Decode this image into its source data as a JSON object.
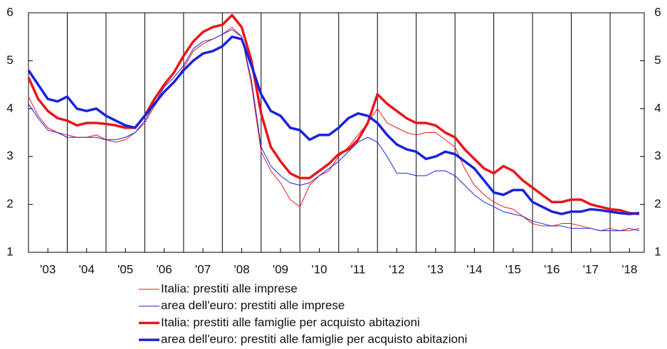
{
  "chart_data": {
    "type": "line",
    "x": [
      2003,
      2003.25,
      2003.5,
      2003.75,
      2004,
      2004.25,
      2004.5,
      2004.75,
      2005,
      2005.25,
      2005.5,
      2005.75,
      2006,
      2006.25,
      2006.5,
      2006.75,
      2007,
      2007.25,
      2007.5,
      2007.75,
      2008,
      2008.25,
      2008.5,
      2008.75,
      2009,
      2009.25,
      2009.5,
      2009.75,
      2010,
      2010.25,
      2010.5,
      2010.75,
      2011,
      2011.25,
      2011.5,
      2011.75,
      2012,
      2012.25,
      2012.5,
      2012.75,
      2013,
      2013.25,
      2013.5,
      2013.75,
      2014,
      2014.25,
      2014.5,
      2014.75,
      2015,
      2015.25,
      2015.5,
      2015.75,
      2016,
      2016.25,
      2016.5,
      2016.75,
      2017,
      2017.25,
      2017.5,
      2017.75,
      2018,
      2018.25,
      2018.5,
      2018.75
    ],
    "xlim": [
      2003,
      2018.88
    ],
    "xticks": [
      {
        "value": 2003.5,
        "label": "'03"
      },
      {
        "value": 2004.5,
        "label": "'04"
      },
      {
        "value": 2005.5,
        "label": "'05"
      },
      {
        "value": 2006.5,
        "label": "'06"
      },
      {
        "value": 2007.5,
        "label": "'07"
      },
      {
        "value": 2008.5,
        "label": "'08"
      },
      {
        "value": 2009.5,
        "label": "'09"
      },
      {
        "value": 2010.5,
        "label": "'10"
      },
      {
        "value": 2011.5,
        "label": "'11"
      },
      {
        "value": 2012.5,
        "label": "'12"
      },
      {
        "value": 2013.5,
        "label": "'13"
      },
      {
        "value": 2014.5,
        "label": "'14"
      },
      {
        "value": 2015.5,
        "label": "'15"
      },
      {
        "value": 2016.5,
        "label": "'16"
      },
      {
        "value": 2017.5,
        "label": "'17"
      },
      {
        "value": 2018.5,
        "label": "'18"
      }
    ],
    "ylim": [
      1,
      6
    ],
    "yticks": [
      1,
      2,
      3,
      4,
      5,
      6
    ],
    "y2lim": [
      1,
      6
    ],
    "y2ticks": [
      1,
      2,
      3,
      4,
      5,
      6
    ],
    "series": [
      {
        "name": "Italia: prestiti alle imprese",
        "color": "#e8161b",
        "line_width": 1,
        "values": [
          4.25,
          3.85,
          3.6,
          3.5,
          3.45,
          3.4,
          3.4,
          3.45,
          3.35,
          3.3,
          3.35,
          3.5,
          3.7,
          4.05,
          4.35,
          4.55,
          4.85,
          5.2,
          5.35,
          5.45,
          5.55,
          5.7,
          5.5,
          4.5,
          3.1,
          2.7,
          2.45,
          2.1,
          1.95,
          2.4,
          2.6,
          2.7,
          3.0,
          3.2,
          3.45,
          3.7,
          4.0,
          3.7,
          3.6,
          3.5,
          3.45,
          3.5,
          3.5,
          3.35,
          3.2,
          2.75,
          2.4,
          2.2,
          2.05,
          1.95,
          1.9,
          1.75,
          1.6,
          1.55,
          1.55,
          1.6,
          1.6,
          1.55,
          1.5,
          1.45,
          1.5,
          1.45,
          1.45,
          1.5
        ]
      },
      {
        "name": "area dell'euro: prestiti alle imprese",
        "color": "#1a23d8",
        "line_width": 1,
        "values": [
          4.1,
          3.8,
          3.55,
          3.5,
          3.4,
          3.4,
          3.4,
          3.4,
          3.35,
          3.35,
          3.4,
          3.5,
          3.75,
          4.1,
          4.45,
          4.65,
          4.9,
          5.25,
          5.4,
          5.45,
          5.55,
          5.65,
          5.5,
          4.6,
          3.2,
          2.8,
          2.6,
          2.45,
          2.4,
          2.45,
          2.6,
          2.75,
          2.9,
          3.1,
          3.3,
          3.4,
          3.3,
          3.0,
          2.65,
          2.65,
          2.6,
          2.6,
          2.7,
          2.7,
          2.6,
          2.4,
          2.2,
          2.05,
          1.95,
          1.85,
          1.8,
          1.75,
          1.65,
          1.6,
          1.55,
          1.55,
          1.5,
          1.5,
          1.5,
          1.45,
          1.45,
          1.45,
          1.5,
          1.45
        ]
      },
      {
        "name": "Italia: prestiti alle famiglie per acquisto abitazioni",
        "color": "#e8161b",
        "line_width": 3.5,
        "values": [
          4.65,
          4.2,
          3.95,
          3.8,
          3.75,
          3.65,
          3.7,
          3.7,
          3.68,
          3.65,
          3.6,
          3.6,
          3.85,
          4.2,
          4.5,
          4.75,
          5.1,
          5.4,
          5.6,
          5.7,
          5.75,
          5.95,
          5.7,
          5.0,
          3.9,
          3.2,
          2.9,
          2.65,
          2.55,
          2.55,
          2.7,
          2.85,
          3.05,
          3.15,
          3.35,
          3.7,
          4.3,
          4.1,
          3.95,
          3.8,
          3.7,
          3.7,
          3.65,
          3.5,
          3.4,
          3.15,
          2.95,
          2.75,
          2.65,
          2.8,
          2.7,
          2.5,
          2.35,
          2.2,
          2.05,
          2.05,
          2.1,
          2.1,
          2.0,
          1.95,
          1.9,
          1.88,
          1.82,
          1.8
        ]
      },
      {
        "name": "area dell'euro: prestiti alle famiglie per acquisto abitazioni",
        "color": "#1a23d8",
        "line_width": 3.5,
        "values": [
          4.8,
          4.5,
          4.2,
          4.15,
          4.25,
          4.0,
          3.95,
          4.0,
          3.85,
          3.75,
          3.65,
          3.6,
          3.85,
          4.1,
          4.35,
          4.55,
          4.8,
          5.0,
          5.15,
          5.2,
          5.3,
          5.5,
          5.45,
          4.9,
          4.3,
          3.95,
          3.85,
          3.6,
          3.55,
          3.35,
          3.45,
          3.45,
          3.6,
          3.8,
          3.9,
          3.85,
          3.7,
          3.45,
          3.25,
          3.15,
          3.1,
          2.95,
          3.0,
          3.1,
          3.05,
          2.9,
          2.75,
          2.5,
          2.25,
          2.2,
          2.3,
          2.3,
          2.05,
          1.95,
          1.85,
          1.8,
          1.85,
          1.85,
          1.9,
          1.88,
          1.85,
          1.82,
          1.8,
          1.82
        ]
      }
    ]
  }
}
